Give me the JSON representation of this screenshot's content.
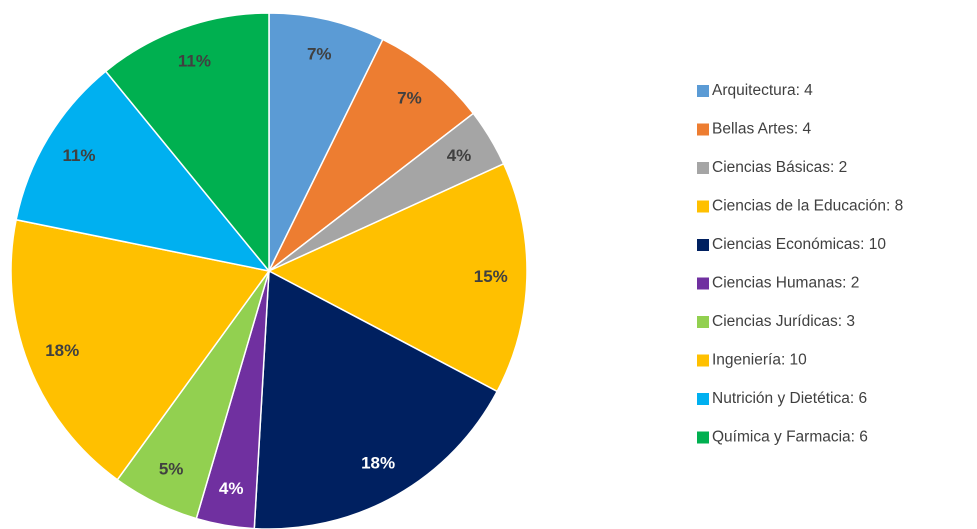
{
  "chart_data": {
    "type": "pie",
    "categories": [
      "Arquitectura: 4",
      "Bellas Artes: 4",
      "Ciencias Básicas: 2",
      "Ciencias de la Educación: 8",
      "Ciencias Económicas: 10",
      "Ciencias Humanas: 2",
      "Ciencias Jurídicas: 3",
      "Ingeniería: 10",
      "Nutrición y Dietética: 6",
      "Química y Farmacia: 6"
    ],
    "values": [
      4,
      4,
      2,
      8,
      10,
      2,
      3,
      10,
      6,
      6
    ],
    "value_labels": [
      "7%",
      "7%",
      "4%",
      "15%",
      "18%",
      "4%",
      "5%",
      "18%",
      "11%",
      "11%"
    ],
    "colors": [
      "#5b9bd5",
      "#ed7d31",
      "#a5a5a5",
      "#ffc000",
      "#002060",
      "#7030a0",
      "#92d050",
      "#ffc000",
      "#00b0f0",
      "#00b050"
    ],
    "legend": "right"
  }
}
